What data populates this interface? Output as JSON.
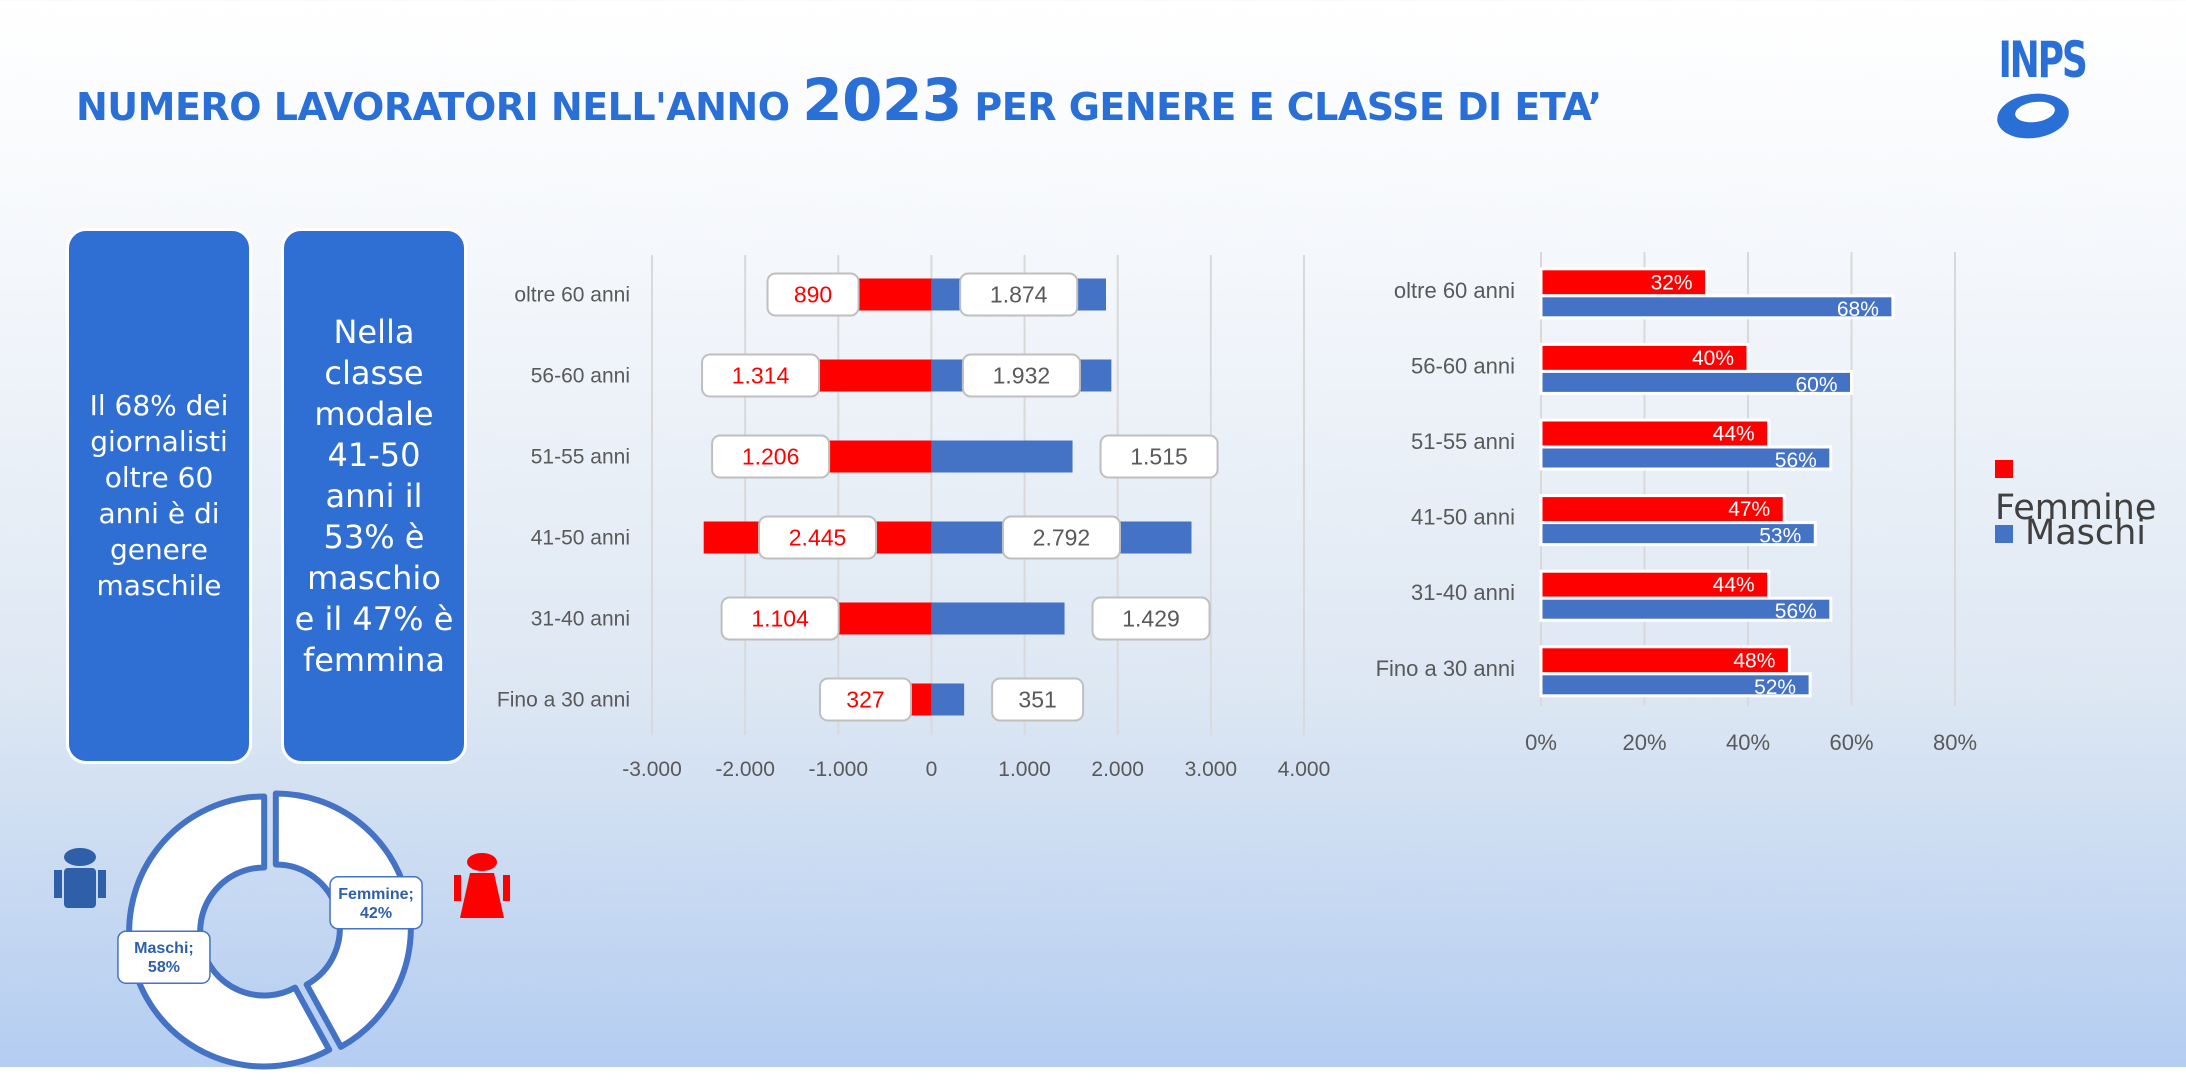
{
  "title": {
    "prefix": "NUMERO LAVORATORI NELL'ANNO ",
    "year": "2023",
    "suffix": " PER GENERE E CLASSE DI ETA’"
  },
  "logo": {
    "text": "INPS"
  },
  "cards": [
    {
      "text": "Il 68% dei\ngiornalisti\noltre 60\nanni è di\ngenere\nmaschile"
    },
    {
      "text": "Nella\nclasse\nmodale\n41-50\nanni il\n53% è\nmaschio\ne il 47% è\nfemmina"
    }
  ],
  "colors": {
    "female": "#ff0000",
    "male": "#4472c4",
    "card": "#2f6fd3",
    "title": "#2a6fd6"
  },
  "icons": {
    "male": "male-person-icon",
    "female": "female-person-icon"
  },
  "chart_data": [
    {
      "type": "bar",
      "orientation": "horizontal",
      "categories": [
        "oltre 60 anni",
        "56-60 anni",
        "51-55 anni",
        "41-50 anni",
        "31-40 anni",
        "Fino a 30 anni"
      ],
      "series": [
        {
          "name": "Femmine",
          "values": [
            -890,
            -1314,
            -1206,
            -2445,
            -1104,
            -327
          ],
          "labels": [
            "890",
            "1.314",
            "1.206",
            "2.445",
            "1.104",
            "327"
          ]
        },
        {
          "name": "Maschi",
          "values": [
            1874,
            1932,
            1515,
            2792,
            1429,
            351
          ],
          "labels": [
            "1.874",
            "1.932",
            "1.515",
            "2.792",
            "1.429",
            "351"
          ]
        }
      ],
      "xlim": [
        -3000,
        4000
      ],
      "ticks": [
        -3000,
        -2000,
        -1000,
        0,
        1000,
        2000,
        3000,
        4000
      ],
      "tick_labels": [
        "-3.000",
        "-2.000",
        "-1.000",
        "0",
        "1.000",
        "2.000",
        "3.000",
        "4.000"
      ],
      "grid": true
    },
    {
      "type": "bar",
      "orientation": "horizontal",
      "categories": [
        "oltre 60 anni",
        "56-60 anni",
        "51-55 anni",
        "41-50 anni",
        "31-40 anni",
        "Fino a 30 anni"
      ],
      "series": [
        {
          "name": "Femmine",
          "values": [
            32,
            40,
            44,
            47,
            44,
            48
          ]
        },
        {
          "name": "Maschi",
          "values": [
            68,
            60,
            56,
            53,
            56,
            52
          ]
        }
      ],
      "xlim": [
        0,
        80
      ],
      "ticks": [
        0,
        20,
        40,
        60,
        80
      ],
      "tick_labels": [
        "0%",
        "20%",
        "40%",
        "60%",
        "80%"
      ],
      "legend": [
        "Femmine",
        "Maschi"
      ],
      "legend_position": "right",
      "grid": true
    },
    {
      "type": "pie",
      "slices": [
        {
          "name": "Femmine",
          "value": 42,
          "label": "Femmine;\n42%"
        },
        {
          "name": "Maschi",
          "value": 58,
          "label": "Maschi;\n58%"
        }
      ]
    }
  ]
}
